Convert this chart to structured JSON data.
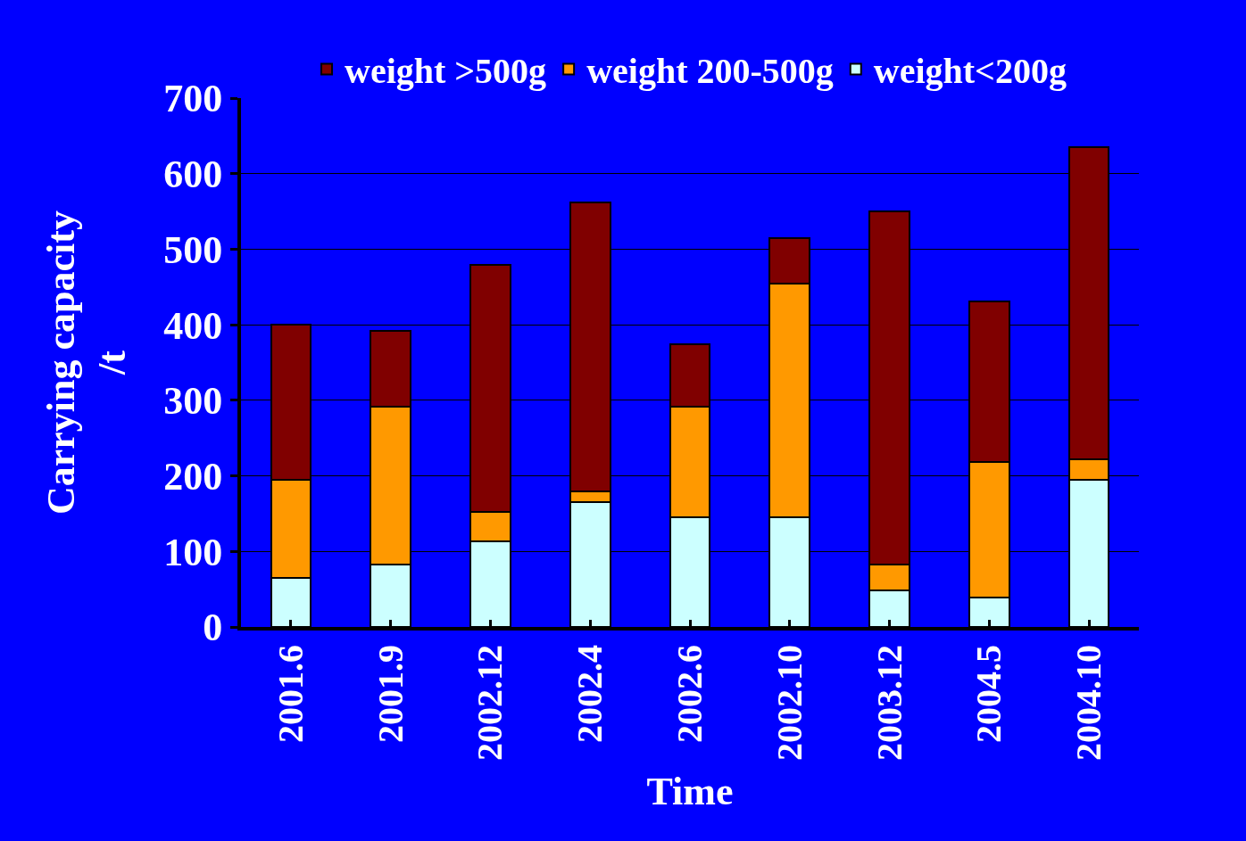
{
  "chart_data": {
    "type": "bar",
    "stacked": true,
    "xlabel": "Time",
    "ylabel": "Carrying capacity /t",
    "categories": [
      "2001.6",
      "2001.9",
      "2002.12",
      "2002.4",
      "2002.6",
      "2002.10",
      "2003.12",
      "2004.5",
      "2004.10"
    ],
    "series": [
      {
        "name": "weight<200g",
        "color": "#ccffff",
        "values": [
          65,
          83,
          113,
          165,
          145,
          145,
          48,
          39,
          195
        ]
      },
      {
        "name": "weight 200-500g",
        "color": "#ff9900",
        "values": [
          130,
          208,
          39,
          14,
          146,
          310,
          35,
          179,
          27
        ]
      },
      {
        "name": "weight >500g",
        "color": "#800000",
        "values": [
          205,
          101,
          327,
          383,
          83,
          60,
          467,
          213,
          413
        ]
      }
    ],
    "ylim": [
      0,
      700
    ],
    "yticks": [
      0,
      100,
      200,
      300,
      400,
      500,
      600,
      700
    ],
    "grid": "y",
    "legend": "top"
  }
}
